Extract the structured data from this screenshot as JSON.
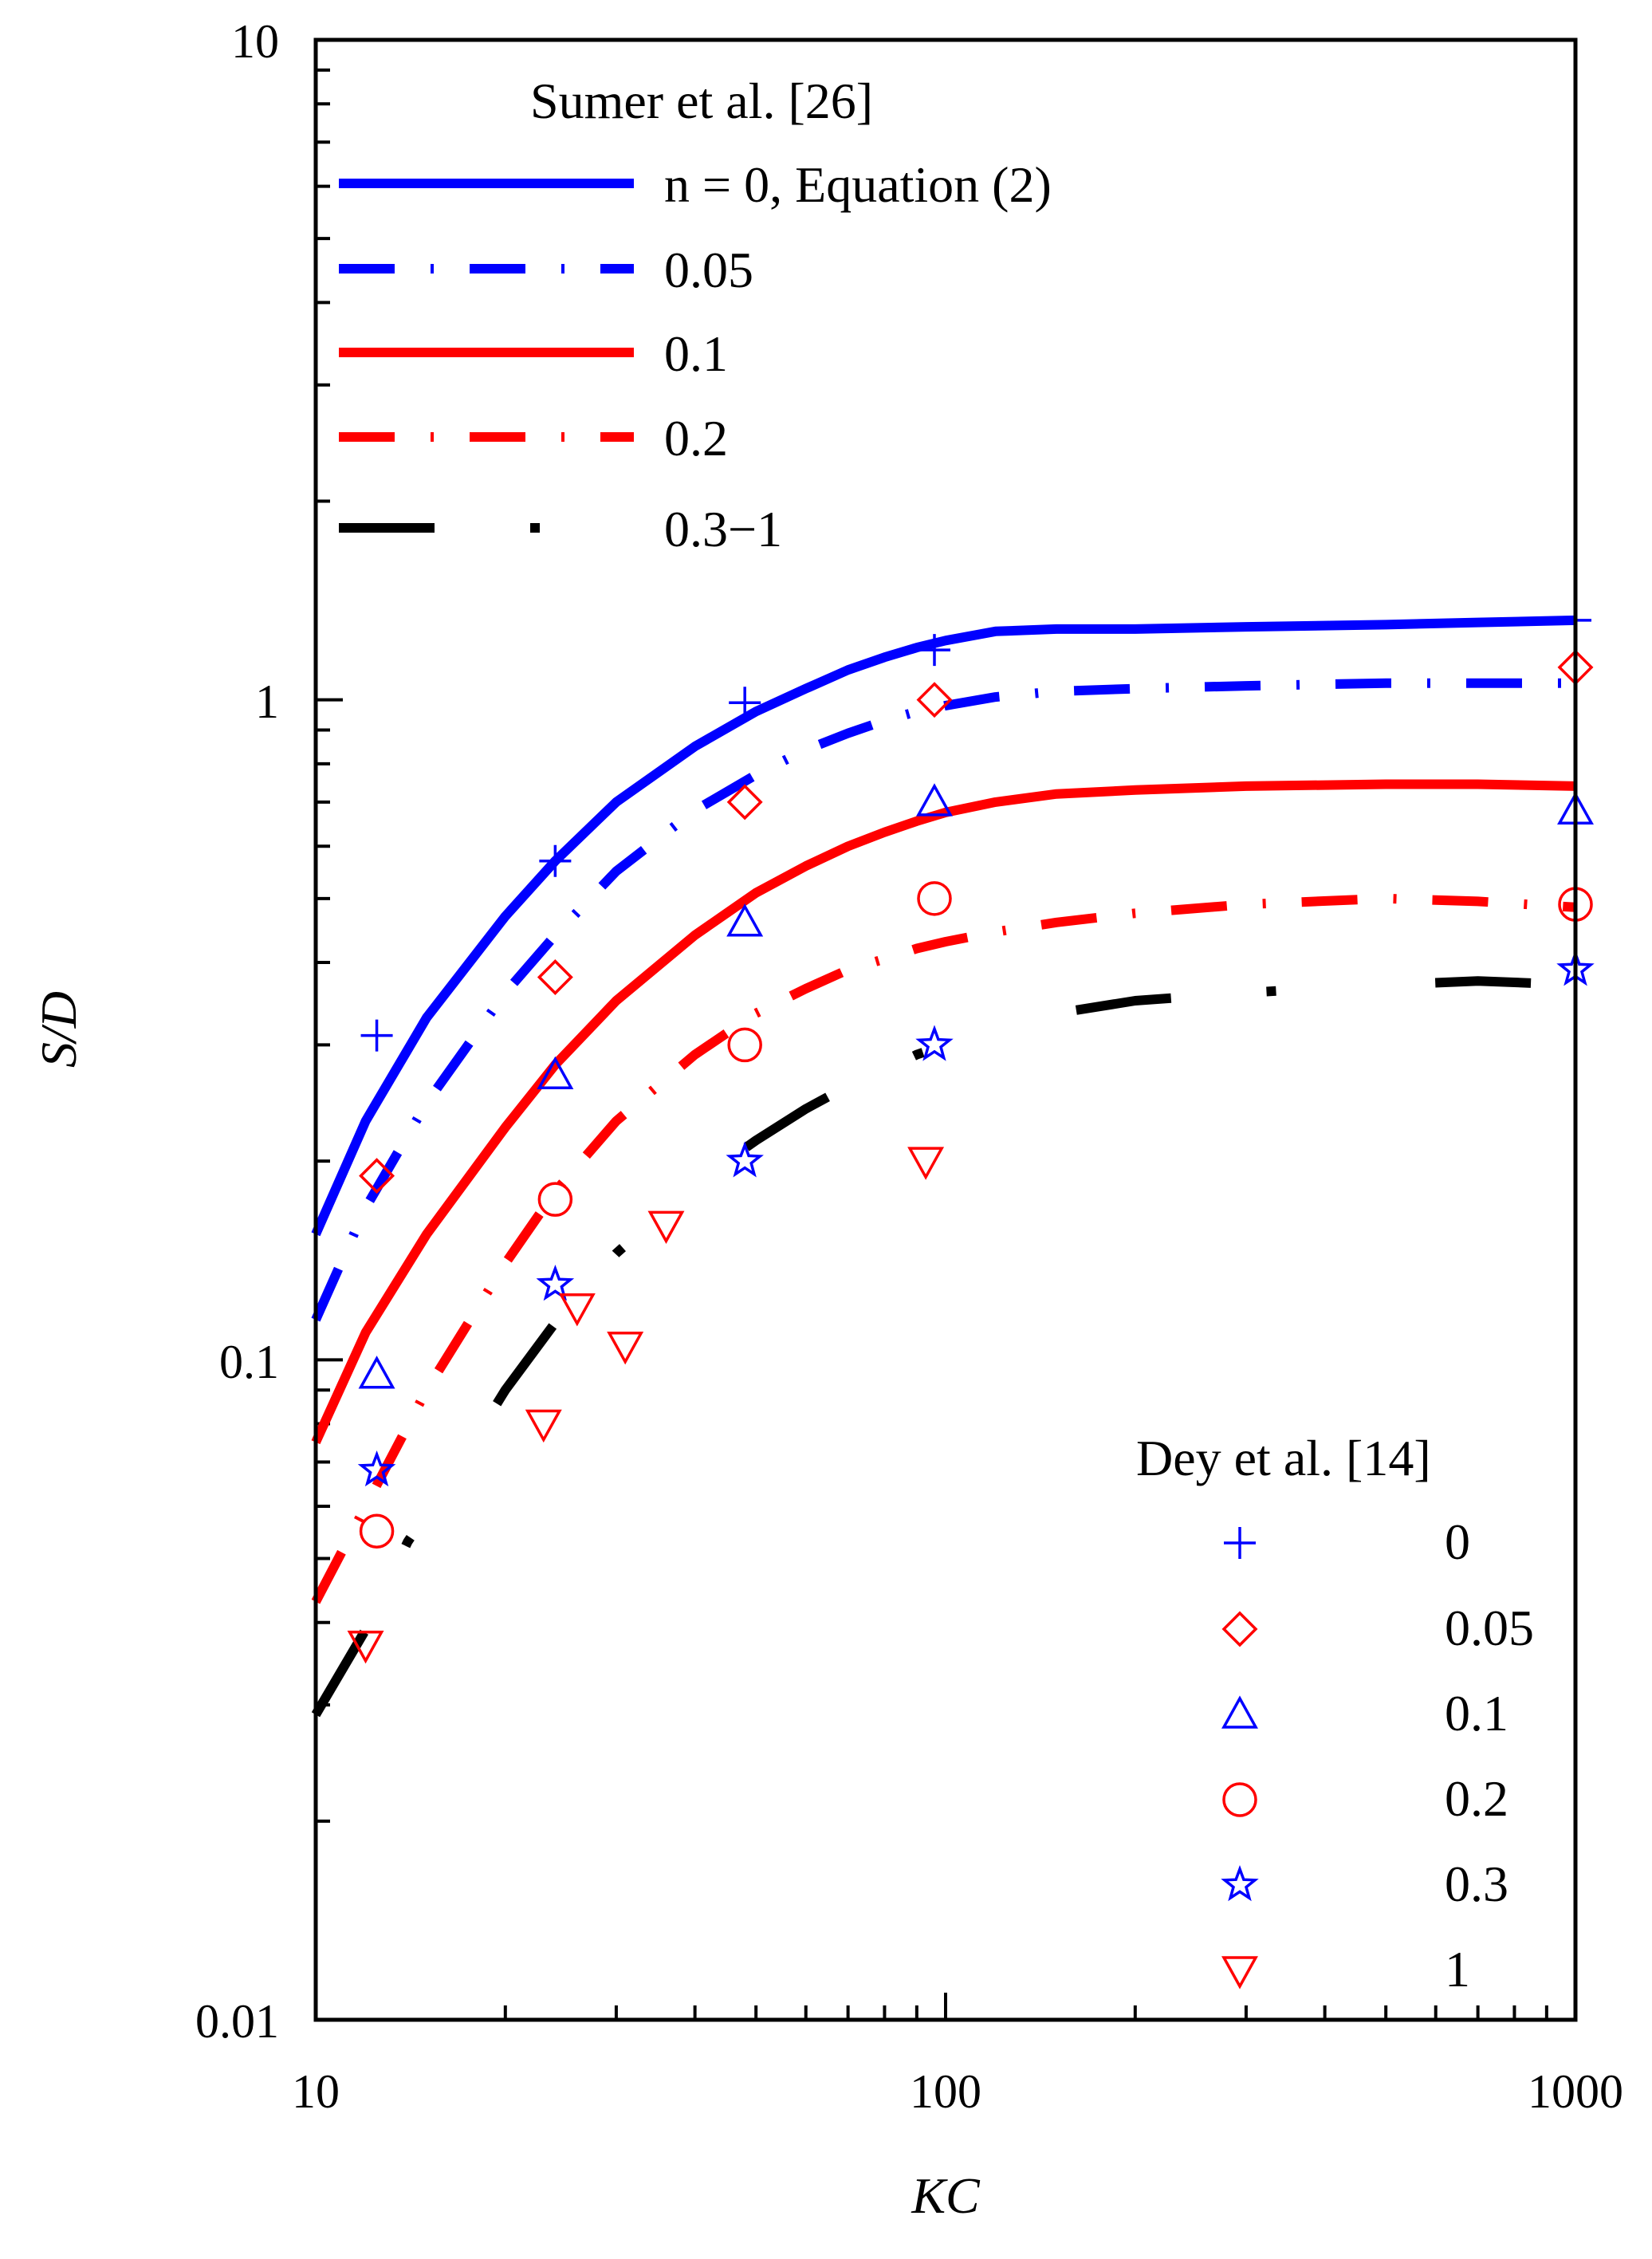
{
  "chart_data": {
    "type": "line",
    "xscale": "log",
    "yscale": "log",
    "xlabel": "KC",
    "ylabel": "S/D",
    "xlim": [
      10,
      1000
    ],
    "ylim": [
      0.01,
      10
    ],
    "x_tick_labels": [
      "10",
      "100",
      "1000"
    ],
    "y_tick_labels": [
      "0.01",
      "0.1",
      "1",
      "10"
    ],
    "legend_sumer_title": "Sumer et al. [26]",
    "legend_dey_title": "Dey et al. [14]",
    "series": [
      {
        "name": "n = 0, Equation (2)",
        "color": "#0000ff",
        "style": "solid",
        "x": [
          10,
          12,
          15,
          20,
          24,
          30,
          40,
          50,
          60,
          70,
          80,
          90,
          100,
          120,
          150,
          200,
          300,
          500,
          700,
          1000
        ],
        "y": [
          0.155,
          0.23,
          0.33,
          0.47,
          0.57,
          0.7,
          0.85,
          0.96,
          1.04,
          1.11,
          1.16,
          1.2,
          1.23,
          1.27,
          1.28,
          1.28,
          1.29,
          1.3,
          1.31,
          1.32
        ]
      },
      {
        "name": "0.05",
        "color": "#0000ff",
        "style": "dashed",
        "x": [
          10,
          12,
          15,
          20,
          24,
          30,
          40,
          50,
          60,
          70,
          80,
          90,
          100,
          120,
          150,
          200,
          300,
          500,
          700,
          1000
        ],
        "y": [
          0.115,
          0.17,
          0.245,
          0.36,
          0.44,
          0.55,
          0.68,
          0.77,
          0.84,
          0.89,
          0.93,
          0.96,
          0.98,
          1.01,
          1.03,
          1.04,
          1.05,
          1.06,
          1.06,
          1.06
        ]
      },
      {
        "name": "0.1",
        "color": "#ff0000",
        "style": "solid",
        "x": [
          10,
          12,
          15,
          20,
          24,
          30,
          40,
          50,
          60,
          70,
          80,
          90,
          100,
          120,
          150,
          200,
          300,
          500,
          700,
          1000
        ],
        "y": [
          0.075,
          0.11,
          0.155,
          0.225,
          0.28,
          0.35,
          0.44,
          0.51,
          0.56,
          0.6,
          0.63,
          0.655,
          0.675,
          0.7,
          0.72,
          0.73,
          0.74,
          0.745,
          0.745,
          0.74
        ]
      },
      {
        "name": "0.2",
        "color": "#ff0000",
        "style": "dashed",
        "x": [
          10,
          12,
          15,
          20,
          24,
          30,
          40,
          50,
          60,
          70,
          80,
          90,
          100,
          120,
          150,
          200,
          300,
          500,
          700,
          1000
        ],
        "y": [
          0.043,
          0.06,
          0.09,
          0.14,
          0.18,
          0.23,
          0.29,
          0.335,
          0.365,
          0.39,
          0.405,
          0.42,
          0.43,
          0.445,
          0.46,
          0.475,
          0.49,
          0.5,
          0.495,
          0.485
        ]
      },
      {
        "name": "0.3−1",
        "color": "#000000",
        "style": "dashdot",
        "x": [
          10,
          12,
          14,
          17,
          20,
          25,
          30,
          40,
          50,
          60,
          70,
          80,
          90,
          100,
          120,
          150,
          200,
          300,
          500,
          700,
          1000
        ],
        "y": [
          0.029,
          0.039,
          0.053,
          0.07,
          0.09,
          0.12,
          0.145,
          0.185,
          0.215,
          0.24,
          0.26,
          0.275,
          0.29,
          0.3,
          0.32,
          0.335,
          0.35,
          0.36,
          0.37,
          0.375,
          0.37
        ]
      }
    ],
    "markers": [
      {
        "name": "0",
        "marker": "plus",
        "color": "#0000ff",
        "x": [
          12.5,
          24,
          48,
          96,
          1000
        ],
        "y": [
          0.31,
          0.57,
          0.99,
          1.19,
          1.32
        ]
      },
      {
        "name": "0.05",
        "marker": "diamond",
        "color": "#ff0000",
        "x": [
          12.5,
          24,
          48,
          96,
          1000
        ],
        "y": [
          0.19,
          0.38,
          0.7,
          1.0,
          1.12
        ]
      },
      {
        "name": "0.1",
        "marker": "triangle-up",
        "color": "#0000ff",
        "x": [
          12.5,
          24,
          48,
          96,
          1000
        ],
        "y": [
          0.095,
          0.27,
          0.46,
          0.7,
          0.68
        ]
      },
      {
        "name": "0.2",
        "marker": "circle",
        "color": "#ff0000",
        "x": [
          12.5,
          24,
          48,
          96,
          1000
        ],
        "y": [
          0.055,
          0.175,
          0.3,
          0.5,
          0.49
        ]
      },
      {
        "name": "0.3",
        "marker": "star",
        "color": "#0000ff",
        "x": [
          12.5,
          24,
          48,
          96,
          1000
        ],
        "y": [
          0.068,
          0.13,
          0.2,
          0.3,
          0.39
        ]
      },
      {
        "name": "1",
        "marker": "triangle-down",
        "color": "#ff0000",
        "x": [
          12,
          23,
          26,
          31,
          36,
          93
        ],
        "y": [
          0.037,
          0.08,
          0.12,
          0.105,
          0.16,
          0.2
        ]
      }
    ]
  }
}
